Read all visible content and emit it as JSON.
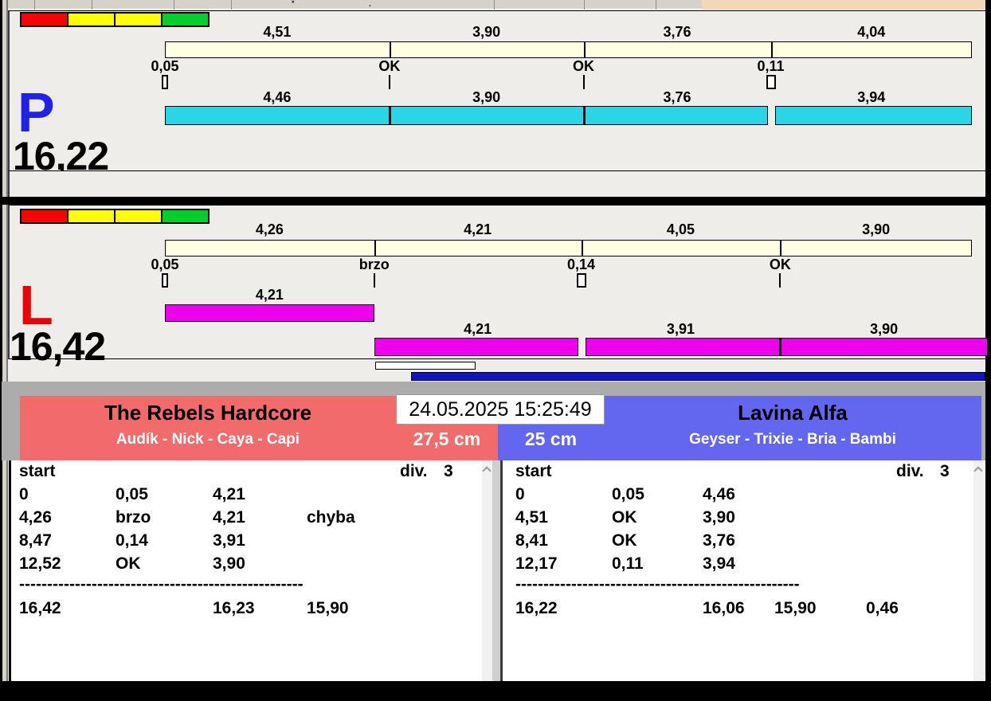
{
  "window": {
    "timestamp": "24.05.2025 15:25:49"
  },
  "colors": {
    "lane_p_letter": "#2121EE",
    "lane_l_letter": "#EE0000",
    "cream": "#FFFFE2",
    "cyan": "#29D6E6",
    "magenta": "#EE00EE",
    "team_left": "#F16B6B",
    "team_right": "#6367EF",
    "progress_blue": "#1212CC",
    "toolbar_peach": "#F2D8B6",
    "traffic": [
      "#FF0000",
      "#FFFF00",
      "#FFFF00",
      "#00D02C"
    ]
  },
  "lanes": {
    "p": {
      "letter": "P",
      "total": "16,22",
      "splits": [
        {
          "label": "4,51",
          "value": 4.51
        },
        {
          "label": "3,90",
          "value": 3.9
        },
        {
          "label": "3,76",
          "value": 3.76
        },
        {
          "label": "4,04",
          "value": 4.04
        }
      ],
      "passes": [
        {
          "label": "0,05",
          "marker": "box"
        },
        {
          "label": "OK",
          "marker": "line"
        },
        {
          "label": "OK",
          "marker": "line"
        },
        {
          "label": "0,11",
          "marker": "box-wide"
        }
      ],
      "bar_color": "#29D6E6",
      "dog_rows": [
        {
          "segments": [
            {
              "label": "4,46",
              "from": 0,
              "to": 1,
              "sep": "none"
            },
            {
              "label": "3,90",
              "from": 1,
              "to": 2,
              "sep": "line"
            },
            {
              "label": "3,76",
              "from": 2,
              "to": 3,
              "sep": "line"
            },
            {
              "label": "3,94",
              "from": 3,
              "to": 4,
              "sep": "gap"
            }
          ]
        }
      ]
    },
    "l": {
      "letter": "L",
      "total": "16,42",
      "splits": [
        {
          "label": "4,26",
          "value": 4.26
        },
        {
          "label": "4,21",
          "value": 4.21
        },
        {
          "label": "4,05",
          "value": 4.05
        },
        {
          "label": "3,90",
          "value": 3.9
        }
      ],
      "passes": [
        {
          "label": "0,05",
          "marker": "box"
        },
        {
          "label": "brzo",
          "marker": "line"
        },
        {
          "label": "0,14",
          "marker": "box-wide"
        },
        {
          "label": "OK",
          "marker": "line"
        }
      ],
      "bar_color": "#EE00EE",
      "dog_rows": [
        {
          "segments": [
            {
              "label": "4,21",
              "from": 0,
              "to": 1,
              "sep": "none"
            }
          ]
        },
        {
          "segments": [
            {
              "label": "4,21",
              "from": 1,
              "to": 2,
              "sep": "none"
            },
            {
              "label": "3,91",
              "from": 2,
              "to": 3,
              "sep": "gap"
            },
            {
              "label": "3,90",
              "from": 3,
              "to": 4,
              "sep": "line",
              "extend": true
            }
          ]
        }
      ]
    }
  },
  "teams": {
    "left": {
      "name": "The Rebels Hardcore",
      "dogs": "Audík - Nick - Caya - Capi",
      "height": "27,5 cm"
    },
    "right": {
      "name": "Lavina Alfa",
      "dogs": "Geyser - Trixie - Bria - Bambi",
      "height": "25 cm"
    }
  },
  "tables": {
    "left": {
      "header": "start",
      "div_label": "div.",
      "div_value": "3",
      "rows": [
        [
          "0",
          "0,05",
          "4,21",
          ""
        ],
        [
          "4,26",
          "brzo",
          "4,21",
          "chyba"
        ],
        [
          "8,47",
          "0,14",
          "3,91",
          ""
        ],
        [
          "12,52",
          "OK",
          "3,90",
          ""
        ]
      ],
      "separator": "---------------------------------------------------",
      "totals": [
        "16,42",
        "16,23",
        "15,90",
        ""
      ]
    },
    "right": {
      "header": "start",
      "div_label": "div.",
      "div_value": "3",
      "rows": [
        [
          "0",
          "0,05",
          "4,46",
          ""
        ],
        [
          "4,51",
          "OK",
          "3,90",
          ""
        ],
        [
          "8,41",
          "OK",
          "3,76",
          ""
        ],
        [
          "12,17",
          "0,11",
          "3,94",
          ""
        ]
      ],
      "separator": "---------------------------------------------------",
      "totals": [
        "16,22",
        "16,06",
        "15,90",
        "0,46"
      ]
    }
  }
}
